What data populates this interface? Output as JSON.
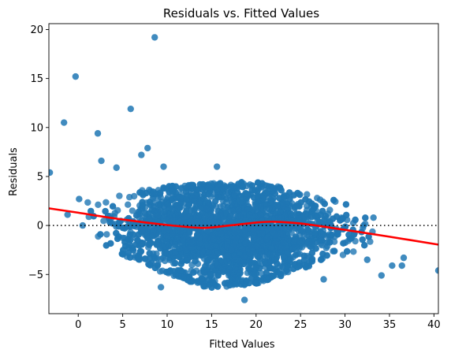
{
  "chart_data": {
    "type": "scatter",
    "title": "Residuals vs. Fitted Values",
    "xlabel": "Fitted Values",
    "ylabel": "Residuals",
    "xlim": [
      -3.3,
      40.5
    ],
    "ylim": [
      -9.0,
      20.6
    ],
    "xticks": [
      0,
      5,
      10,
      15,
      20,
      25,
      30,
      35,
      40
    ],
    "yticks": [
      -5,
      0,
      5,
      10,
      15,
      20
    ],
    "grid": false,
    "colors": {
      "points": "#1f77b4",
      "trend": "#ff0000",
      "zero_line": "#000000"
    },
    "reference_line": {
      "y": 0,
      "style": "dotted"
    },
    "cloud": {
      "description_x_range": [
        1,
        34
      ],
      "band_upper": [
        [
          1,
          3.0
        ],
        [
          5,
          3.5
        ],
        [
          10,
          4.0
        ],
        [
          15,
          4.3
        ],
        [
          20,
          4.5
        ],
        [
          25,
          3.5
        ],
        [
          30,
          2.3
        ],
        [
          34,
          1.0
        ]
      ],
      "band_lower": [
        [
          1,
          -1.0
        ],
        [
          5,
          -3.0
        ],
        [
          10,
          -5.0
        ],
        [
          15,
          -6.5
        ],
        [
          20,
          -6.0
        ],
        [
          25,
          -4.5
        ],
        [
          30,
          -3.0
        ],
        [
          34,
          -2.0
        ]
      ]
    },
    "outliers": [
      {
        "x": 8.6,
        "y": 19.2
      },
      {
        "x": -0.3,
        "y": 15.2
      },
      {
        "x": 5.9,
        "y": 11.9
      },
      {
        "x": -1.6,
        "y": 10.5
      },
      {
        "x": 2.2,
        "y": 9.4
      },
      {
        "x": 7.8,
        "y": 7.9
      },
      {
        "x": 7.1,
        "y": 7.2
      },
      {
        "x": 2.6,
        "y": 6.6
      },
      {
        "x": -3.2,
        "y": 5.4
      },
      {
        "x": 9.6,
        "y": 6.0
      },
      {
        "x": 15.6,
        "y": 6.0
      },
      {
        "x": 4.3,
        "y": 5.9
      },
      {
        "x": 40.5,
        "y": -4.6
      },
      {
        "x": 36.6,
        "y": -3.3
      },
      {
        "x": 36.4,
        "y": -4.1
      },
      {
        "x": 35.3,
        "y": -4.1
      },
      {
        "x": 34.1,
        "y": -5.1
      },
      {
        "x": 33.2,
        "y": 0.8
      },
      {
        "x": 32.5,
        "y": -3.5
      },
      {
        "x": 27.6,
        "y": -5.5
      },
      {
        "x": 18.7,
        "y": -7.6
      },
      {
        "x": 9.3,
        "y": -6.3
      },
      {
        "x": 0.1,
        "y": 2.7
      },
      {
        "x": -1.2,
        "y": 1.1
      },
      {
        "x": 0.5,
        "y": 0.0
      }
    ],
    "trend_line": [
      {
        "x": -3.3,
        "y": 1.75
      },
      {
        "x": 0,
        "y": 1.3
      },
      {
        "x": 5,
        "y": 0.6
      },
      {
        "x": 10,
        "y": 0.05
      },
      {
        "x": 14,
        "y": -0.25
      },
      {
        "x": 17,
        "y": 0.0
      },
      {
        "x": 20,
        "y": 0.3
      },
      {
        "x": 22,
        "y": 0.38
      },
      {
        "x": 25,
        "y": 0.2
      },
      {
        "x": 30,
        "y": -0.45
      },
      {
        "x": 35,
        "y": -1.15
      },
      {
        "x": 40.5,
        "y": -1.95
      }
    ]
  }
}
